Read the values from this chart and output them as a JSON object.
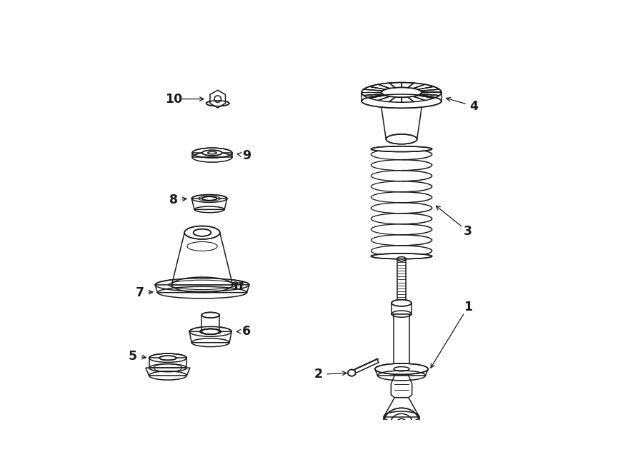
{
  "bg_color": "#ffffff",
  "line_color": "#1a1a1a",
  "lw": 1.1,
  "fig_width": 9.0,
  "fig_height": 6.61,
  "dpi": 100
}
